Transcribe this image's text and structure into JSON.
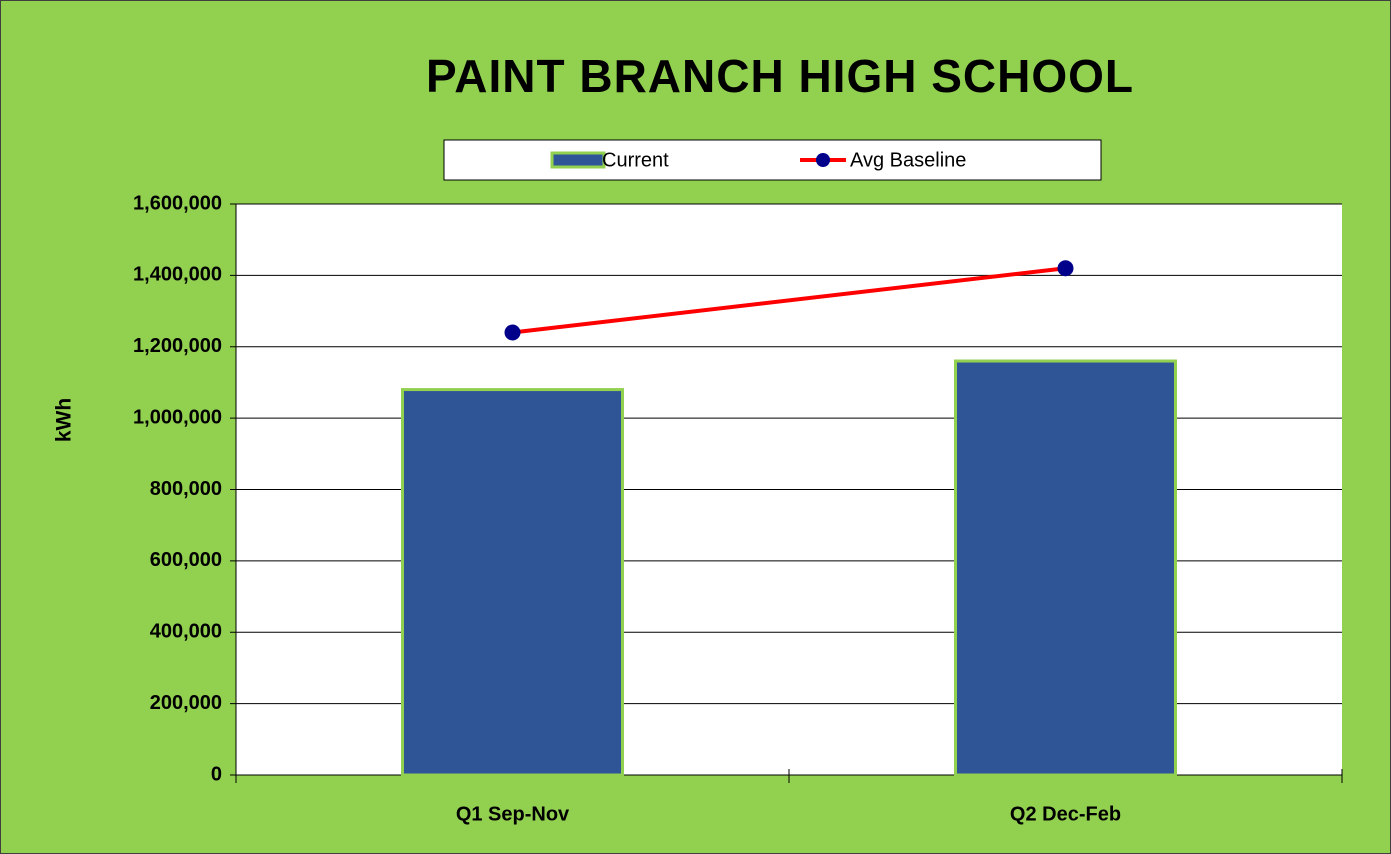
{
  "chart_data": {
    "type": "bar",
    "title": "PAINT BRANCH HIGH SCHOOL",
    "ylabel": "kWh",
    "categories": [
      "Q1 Sep-Nov",
      "Q2 Dec-Feb"
    ],
    "series": [
      {
        "name": "Current",
        "type": "bar",
        "color": "#2f5597",
        "values": [
          1080000,
          1160000
        ]
      },
      {
        "name": "Avg Baseline",
        "type": "line",
        "color": "#ff0000",
        "marker_color": "#00008b",
        "values": [
          1240000,
          1420000
        ]
      }
    ],
    "ylim": [
      0,
      1600000
    ],
    "yticks": [
      0,
      {
        "value": 200000,
        "label": "200,000"
      },
      {
        "value": 400000,
        "label": "400,000"
      },
      {
        "value": 600000,
        "label": "600,000"
      },
      {
        "value": 800000,
        "label": "800,000"
      },
      {
        "value": 1000000,
        "label": "1,000,000"
      },
      {
        "value": 1200000,
        "label": "1,200,000"
      },
      {
        "value": 1400000,
        "label": "1,400,000"
      },
      {
        "value": 1600000,
        "label": "1,600,000"
      }
    ],
    "grid": true
  }
}
